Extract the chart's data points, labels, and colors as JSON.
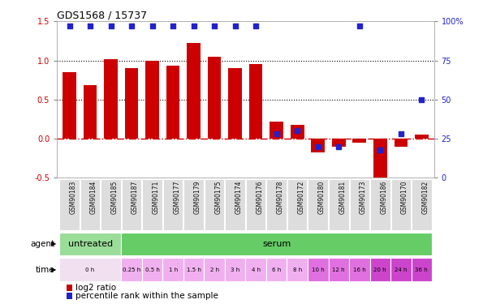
{
  "title": "GDS1568 / 15737",
  "samples": [
    "GSM90183",
    "GSM90184",
    "GSM90185",
    "GSM90187",
    "GSM90171",
    "GSM90177",
    "GSM90179",
    "GSM90175",
    "GSM90174",
    "GSM90176",
    "GSM90178",
    "GSM90172",
    "GSM90180",
    "GSM90181",
    "GSM90173",
    "GSM90186",
    "GSM90170",
    "GSM90182"
  ],
  "log2_ratio": [
    0.85,
    0.68,
    1.02,
    0.9,
    1.0,
    0.93,
    1.22,
    1.05,
    0.9,
    0.95,
    0.22,
    0.18,
    -0.18,
    -0.1,
    -0.05,
    -0.52,
    -0.1,
    0.05
  ],
  "percentile": [
    97,
    97,
    97,
    97,
    97,
    97,
    97,
    97,
    97,
    97,
    28,
    30,
    20,
    20,
    97,
    18,
    28,
    50
  ],
  "bar_color": "#cc0000",
  "dot_color": "#2222cc",
  "ylim_left": [
    -0.5,
    1.5
  ],
  "ylim_right": [
    0,
    100
  ],
  "yticks_left": [
    -0.5,
    0.0,
    0.5,
    1.0,
    1.5
  ],
  "yticks_right": [
    0,
    25,
    50,
    75,
    100
  ],
  "hlines": [
    0.5,
    1.0
  ],
  "agent_labels": [
    {
      "label": "untreated",
      "start": 0,
      "end": 3,
      "color": "#99dd99"
    },
    {
      "label": "serum",
      "start": 3,
      "end": 18,
      "color": "#66cc66"
    }
  ],
  "time_labels": [
    {
      "label": "0 h",
      "start": 0,
      "end": 3,
      "color": "#f0e0f0"
    },
    {
      "label": "0.25 h",
      "start": 3,
      "end": 4,
      "color": "#f0b0f0"
    },
    {
      "label": "0.5 h",
      "start": 4,
      "end": 5,
      "color": "#f0b0f0"
    },
    {
      "label": "1 h",
      "start": 5,
      "end": 6,
      "color": "#f0b0f0"
    },
    {
      "label": "1.5 h",
      "start": 6,
      "end": 7,
      "color": "#f0b0f0"
    },
    {
      "label": "2 h",
      "start": 7,
      "end": 8,
      "color": "#f0b0f0"
    },
    {
      "label": "3 h",
      "start": 8,
      "end": 9,
      "color": "#f0b0f0"
    },
    {
      "label": "4 h",
      "start": 9,
      "end": 10,
      "color": "#f0b0f0"
    },
    {
      "label": "6 h",
      "start": 10,
      "end": 11,
      "color": "#f0b0f0"
    },
    {
      "label": "8 h",
      "start": 11,
      "end": 12,
      "color": "#f0b0f0"
    },
    {
      "label": "10 h",
      "start": 12,
      "end": 13,
      "color": "#e070e0"
    },
    {
      "label": "12 h",
      "start": 13,
      "end": 14,
      "color": "#e070e0"
    },
    {
      "label": "16 h",
      "start": 14,
      "end": 15,
      "color": "#e070e0"
    },
    {
      "label": "20 h",
      "start": 15,
      "end": 16,
      "color": "#cc44cc"
    },
    {
      "label": "24 h",
      "start": 16,
      "end": 17,
      "color": "#cc44cc"
    },
    {
      "label": "36 h",
      "start": 17,
      "end": 18,
      "color": "#cc44cc"
    }
  ],
  "legend_log2_color": "#cc0000",
  "legend_pct_color": "#2222cc",
  "bg_color": "#ffffff",
  "xticklabel_color": "#333333",
  "zero_line_color": "#cc0000",
  "zero_line_style": "-.",
  "hline_color": "#000000",
  "hline_style": ":"
}
